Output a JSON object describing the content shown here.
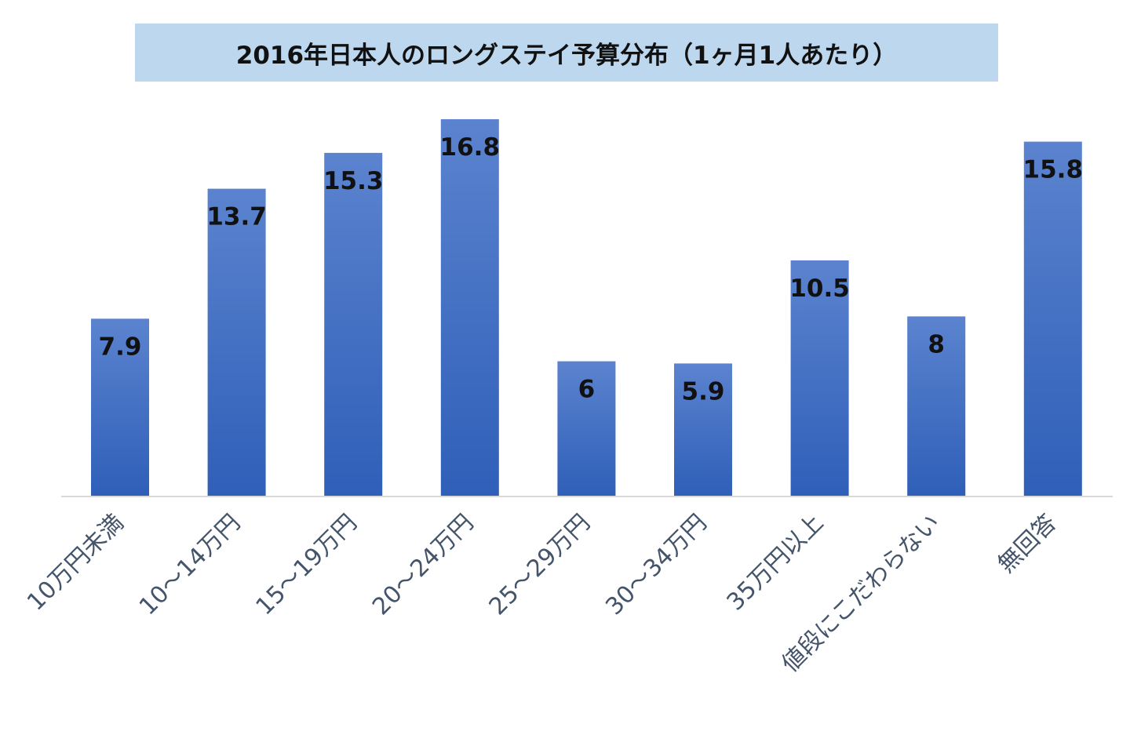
{
  "chart_data": {
    "type": "bar",
    "title": "2016年日本人のロングステイ予算分布（1ヶ月1人あたり）",
    "categories": [
      "10万円未満",
      "10～14万円",
      "15～19万円",
      "20～24万円",
      "25～29万円",
      "30～34万円",
      "35万円以上",
      "値段にこだわらない",
      "無回答"
    ],
    "values": [
      7.9,
      13.7,
      15.3,
      16.8,
      6,
      5.9,
      10.5,
      8,
      15.8
    ],
    "value_labels": [
      "7.9",
      "13.7",
      "15.3",
      "16.8",
      "6",
      "5.9",
      "10.5",
      "8",
      "15.8"
    ],
    "xlabel": "",
    "ylabel": "",
    "ylim": [
      0,
      16.8
    ],
    "grid": false,
    "legend": "none",
    "colors": {
      "bar_top": "#5b83cf",
      "bar_bottom": "#2f5fb8",
      "title_background": "#bdd7ee",
      "axis_line": "#d9d9d9",
      "category_text": "#44546a"
    }
  }
}
